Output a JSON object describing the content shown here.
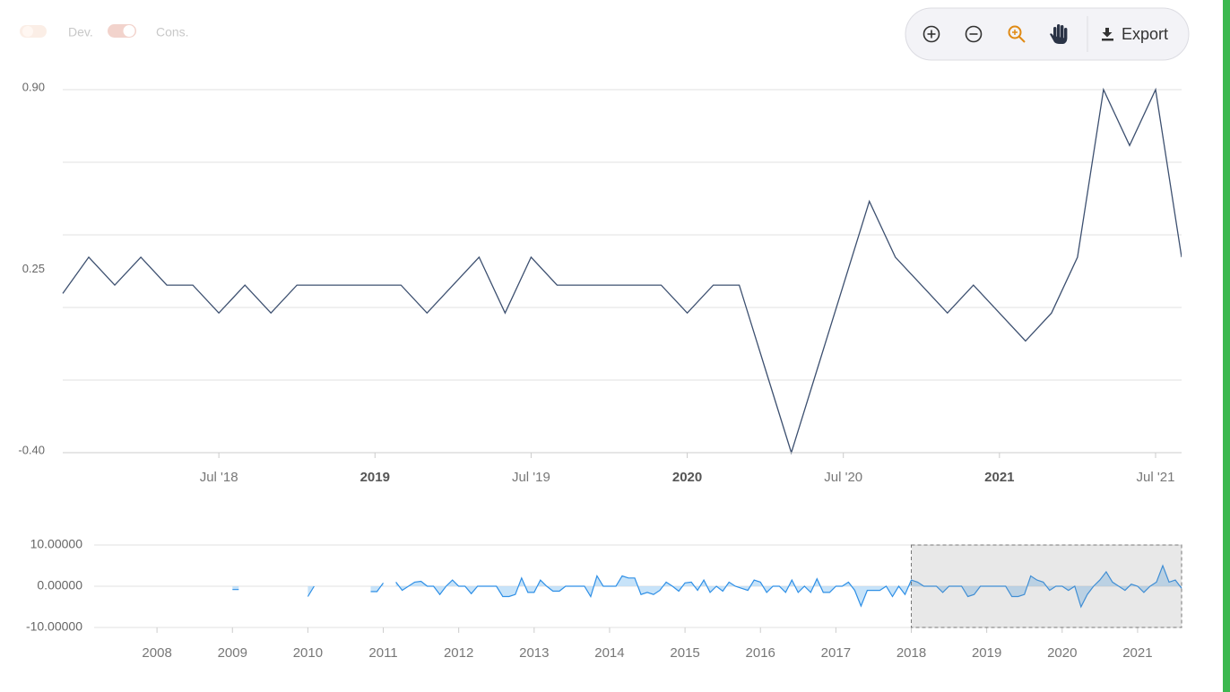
{
  "ui": {
    "toggles": [
      "Dev.",
      "Cons."
    ],
    "export": "Export"
  },
  "chart_data": [
    {
      "type": "line",
      "color": "#3d5070",
      "x": [
        "2018-01",
        "2018-02",
        "2018-03",
        "2018-04",
        "2018-05",
        "2018-06",
        "2018-07",
        "2018-08",
        "2018-09",
        "2018-10",
        "2018-11",
        "2018-12",
        "2019-01",
        "2019-02",
        "2019-03",
        "2019-04",
        "2019-05",
        "2019-06",
        "2019-07",
        "2019-08",
        "2019-09",
        "2019-10",
        "2019-11",
        "2019-12",
        "2020-01",
        "2020-02",
        "2020-03",
        "2020-04",
        "2020-05",
        "2020-06",
        "2020-07",
        "2020-08",
        "2020-09",
        "2020-10",
        "2020-11",
        "2020-12",
        "2021-01",
        "2021-02",
        "2021-03",
        "2021-04",
        "2021-05",
        "2021-06",
        "2021-07",
        "2021-08"
      ],
      "values": [
        0.17,
        0.3,
        0.2,
        0.3,
        0.2,
        0.2,
        0.1,
        0.2,
        0.1,
        0.2,
        0.2,
        0.2,
        0.2,
        0.2,
        0.1,
        0.2,
        0.3,
        0.1,
        0.3,
        0.2,
        0.2,
        0.2,
        0.2,
        0.2,
        0.1,
        0.2,
        0.2,
        -0.1,
        -0.4,
        -0.1,
        0.2,
        0.5,
        0.3,
        0.2,
        0.1,
        0.2,
        0.1,
        0.0,
        0.1,
        0.3,
        0.9,
        0.7,
        0.9,
        0.3
      ],
      "xlim": [
        "2018-01",
        "2021-08"
      ],
      "xticks": [
        {
          "value": "2018-07",
          "label": "Jul '18"
        },
        {
          "value": "2019-01",
          "label": "2019"
        },
        {
          "value": "2019-07",
          "label": "Jul '19"
        },
        {
          "value": "2020-01",
          "label": "2020"
        },
        {
          "value": "2020-07",
          "label": "Jul '20"
        },
        {
          "value": "2021-01",
          "label": "2021"
        },
        {
          "value": "2021-07",
          "label": "Jul '21"
        }
      ],
      "ylim": [
        -0.4,
        0.9
      ],
      "yticks": [
        {
          "value": 0.9,
          "label": "0.90"
        },
        {
          "value": 0.25,
          "label": "0.25"
        },
        {
          "value": -0.4,
          "label": "-0.40"
        }
      ],
      "grid_lines": [
        0.9,
        0.64,
        0.38,
        0.12,
        -0.14,
        -0.4
      ]
    },
    {
      "type": "area",
      "color": "#2e8fe6",
      "fill": "#b9dcf7",
      "x": [
        "2009-01",
        "2009-02",
        "2009-03",
        "2009-04",
        "2009-05",
        "2009-06",
        "2009-07",
        "2009-08",
        "2009-09",
        "2009-10",
        "2009-11",
        "2009-12",
        "2010-01",
        "2010-02",
        "2010-03",
        "2010-04",
        "2010-05",
        "2010-06",
        "2010-07",
        "2010-08",
        "2010-09",
        "2010-10",
        "2010-11",
        "2010-12",
        "2011-01",
        "2011-02",
        "2011-03",
        "2011-04",
        "2011-05",
        "2011-06",
        "2011-07",
        "2011-08",
        "2011-09",
        "2011-10",
        "2011-11",
        "2011-12",
        "2012-01",
        "2012-02",
        "2012-03",
        "2012-04",
        "2012-05",
        "2012-06",
        "2012-07",
        "2012-08",
        "2012-09",
        "2012-10",
        "2012-11",
        "2012-12",
        "2013-01",
        "2013-02",
        "2013-03",
        "2013-04",
        "2013-05",
        "2013-06",
        "2013-07",
        "2013-08",
        "2013-09",
        "2013-10",
        "2013-11",
        "2013-12",
        "2014-01",
        "2014-02",
        "2014-03",
        "2014-04",
        "2014-05",
        "2014-06",
        "2014-07",
        "2014-08",
        "2014-09",
        "2014-10",
        "2014-11",
        "2014-12",
        "2015-01",
        "2015-02",
        "2015-03",
        "2015-04",
        "2015-05",
        "2015-06",
        "2015-07",
        "2015-08",
        "2015-09",
        "2015-10",
        "2015-11",
        "2015-12",
        "2016-01",
        "2016-02",
        "2016-03",
        "2016-04",
        "2016-05",
        "2016-06",
        "2016-07",
        "2016-08",
        "2016-09",
        "2016-10",
        "2016-11",
        "2016-12",
        "2017-01",
        "2017-02",
        "2017-03",
        "2017-04",
        "2017-05",
        "2017-06",
        "2017-07",
        "2017-08",
        "2017-09",
        "2017-10",
        "2017-11",
        "2017-12",
        "2018-01",
        "2018-02",
        "2018-03",
        "2018-04",
        "2018-05",
        "2018-06",
        "2018-07",
        "2018-08",
        "2018-09",
        "2018-10",
        "2018-11",
        "2018-12",
        "2019-01",
        "2019-02",
        "2019-03",
        "2019-04",
        "2019-05",
        "2019-06",
        "2019-07",
        "2019-08",
        "2019-09",
        "2019-10",
        "2019-11",
        "2019-12",
        "2020-01",
        "2020-02",
        "2020-03",
        "2020-04",
        "2020-05",
        "2020-06",
        "2020-07",
        "2020-08",
        "2020-09",
        "2020-10",
        "2020-11",
        "2020-12",
        "2021-01",
        "2021-02",
        "2021-03",
        "2021-04",
        "2021-05",
        "2021-06",
        "2021-07",
        "2021-08"
      ],
      "values": [
        -0.8,
        -0.8,
        null,
        null,
        null,
        null,
        null,
        null,
        null,
        null,
        null,
        null,
        -2.5,
        0,
        null,
        null,
        null,
        null,
        null,
        null,
        null,
        null,
        -1.3,
        -1.3,
        0.8,
        null,
        1.0,
        -1.0,
        0,
        1,
        1.2,
        0,
        0,
        -2,
        0,
        1.5,
        0,
        0,
        -1.8,
        0,
        0,
        0,
        0,
        -2.5,
        -2.5,
        -2,
        2,
        -1.5,
        -1.5,
        1.5,
        0,
        -1.2,
        -1.2,
        0,
        0,
        0,
        0,
        -2.5,
        2.5,
        0,
        0,
        0,
        2.5,
        2,
        2,
        -2,
        -1.5,
        -2,
        -1,
        1,
        0,
        -1.2,
        0.8,
        1,
        -1,
        1.5,
        -1.5,
        0,
        -1.2,
        1,
        0,
        -0.5,
        -1,
        1.5,
        1,
        -1.5,
        0,
        0,
        -1.5,
        1.5,
        -1.5,
        0,
        -1.5,
        1.8,
        -1.5,
        -1.5,
        0,
        0,
        1,
        -1,
        -4.8,
        -1,
        -1,
        -1,
        0,
        -2.5,
        0,
        -2,
        1.5,
        1,
        0,
        0,
        0,
        -1.5,
        0,
        0,
        0,
        -2.5,
        -2,
        0,
        0,
        0,
        0,
        0,
        -2.5,
        -2.5,
        -2,
        2.5,
        1.5,
        1,
        -1,
        0,
        0,
        -1,
        0,
        -5,
        -2,
        0,
        1.5,
        3.5,
        1,
        0,
        -1,
        0.5,
        0,
        -1.5,
        0,
        1,
        5,
        1,
        1.5,
        -0.5
      ],
      "xlim": [
        "2007-03",
        "2021-08"
      ],
      "xticks": [
        {
          "value": "2008-01",
          "label": "2008"
        },
        {
          "value": "2009-01",
          "label": "2009"
        },
        {
          "value": "2010-01",
          "label": "2010"
        },
        {
          "value": "2011-01",
          "label": "2011"
        },
        {
          "value": "2012-01",
          "label": "2012"
        },
        {
          "value": "2013-01",
          "label": "2013"
        },
        {
          "value": "2014-01",
          "label": "2014"
        },
        {
          "value": "2015-01",
          "label": "2015"
        },
        {
          "value": "2016-01",
          "label": "2016"
        },
        {
          "value": "2017-01",
          "label": "2017"
        },
        {
          "value": "2018-01",
          "label": "2018"
        },
        {
          "value": "2019-01",
          "label": "2019"
        },
        {
          "value": "2020-01",
          "label": "2020"
        },
        {
          "value": "2021-01",
          "label": "2021"
        }
      ],
      "ylim": [
        -10,
        10
      ],
      "yticks": [
        {
          "value": 10,
          "label": "10.00000"
        },
        {
          "value": 0,
          "label": "0.00000"
        },
        {
          "value": -10,
          "label": "-10.00000"
        }
      ]
    }
  ]
}
